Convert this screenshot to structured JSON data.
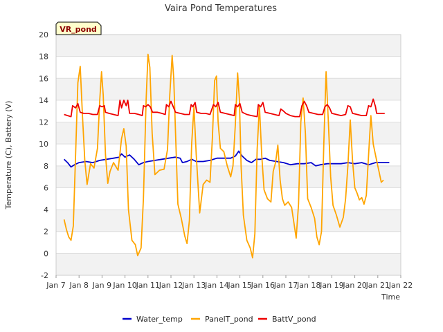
{
  "chart_data": {
    "type": "line",
    "title": "Vaira Pond Temperatures",
    "xlabel": "Time",
    "ylabel": "Temperature (C), Battery (V)",
    "badge": "VR_pond",
    "xlim": [
      7,
      22
    ],
    "ylim": [
      -2,
      20
    ],
    "x_ticks": [
      {
        "x": 7,
        "label": "Jan 7"
      },
      {
        "x": 8,
        "label": "Jan 8"
      },
      {
        "x": 9,
        "label": "Jan 9"
      },
      {
        "x": 10,
        "label": "Jan 10"
      },
      {
        "x": 11,
        "label": "Jan 11"
      },
      {
        "x": 12,
        "label": "Jan 12"
      },
      {
        "x": 13,
        "label": "Jan 13"
      },
      {
        "x": 14,
        "label": "Jan 14"
      },
      {
        "x": 15,
        "label": "Jan 15"
      },
      {
        "x": 16,
        "label": "Jan 16"
      },
      {
        "x": 17,
        "label": "Jan 17"
      },
      {
        "x": 18,
        "label": "Jan 18"
      },
      {
        "x": 19,
        "label": "Jan 19"
      },
      {
        "x": 20,
        "label": "Jan 20"
      },
      {
        "x": 21,
        "label": "Jan 21"
      },
      {
        "x": 22,
        "label": "Jan 22"
      }
    ],
    "y_ticks": [
      -2,
      0,
      2,
      4,
      6,
      8,
      10,
      12,
      14,
      16,
      18,
      20
    ],
    "grid": true,
    "legend_position": "bottom",
    "series": [
      {
        "name": "Water_temp",
        "color": "#0000cc",
        "points": [
          [
            7.35,
            8.6
          ],
          [
            7.5,
            8.3
          ],
          [
            7.65,
            7.9
          ],
          [
            7.8,
            8.1
          ],
          [
            8.0,
            8.3
          ],
          [
            8.3,
            8.4
          ],
          [
            8.6,
            8.3
          ],
          [
            8.9,
            8.5
          ],
          [
            9.2,
            8.6
          ],
          [
            9.5,
            8.7
          ],
          [
            9.75,
            8.8
          ],
          [
            9.85,
            9.1
          ],
          [
            10.0,
            8.8
          ],
          [
            10.2,
            9.0
          ],
          [
            10.4,
            8.6
          ],
          [
            10.6,
            8.1
          ],
          [
            10.8,
            8.3
          ],
          [
            11.0,
            8.4
          ],
          [
            11.3,
            8.5
          ],
          [
            11.6,
            8.6
          ],
          [
            11.9,
            8.7
          ],
          [
            12.2,
            8.8
          ],
          [
            12.4,
            8.7
          ],
          [
            12.5,
            8.3
          ],
          [
            12.7,
            8.4
          ],
          [
            12.9,
            8.6
          ],
          [
            13.1,
            8.4
          ],
          [
            13.4,
            8.4
          ],
          [
            13.7,
            8.5
          ],
          [
            14.0,
            8.7
          ],
          [
            14.3,
            8.7
          ],
          [
            14.6,
            8.7
          ],
          [
            14.8,
            8.9
          ],
          [
            14.95,
            9.35
          ],
          [
            15.1,
            8.9
          ],
          [
            15.3,
            8.5
          ],
          [
            15.5,
            8.3
          ],
          [
            15.7,
            8.6
          ],
          [
            15.9,
            8.6
          ],
          [
            16.1,
            8.7
          ],
          [
            16.3,
            8.5
          ],
          [
            16.6,
            8.4
          ],
          [
            16.9,
            8.3
          ],
          [
            17.2,
            8.1
          ],
          [
            17.5,
            8.2
          ],
          [
            17.8,
            8.2
          ],
          [
            18.1,
            8.3
          ],
          [
            18.3,
            8.0
          ],
          [
            18.5,
            8.1
          ],
          [
            18.8,
            8.2
          ],
          [
            19.1,
            8.2
          ],
          [
            19.4,
            8.2
          ],
          [
            19.7,
            8.3
          ],
          [
            20.0,
            8.2
          ],
          [
            20.3,
            8.3
          ],
          [
            20.6,
            8.1
          ],
          [
            20.9,
            8.3
          ],
          [
            21.2,
            8.3
          ],
          [
            21.5,
            8.3
          ]
        ]
      },
      {
        "name": "PanelT_pond",
        "color": "#ffa500",
        "points": [
          [
            7.35,
            3.1
          ],
          [
            7.45,
            2.2
          ],
          [
            7.55,
            1.5
          ],
          [
            7.65,
            1.2
          ],
          [
            7.75,
            2.5
          ],
          [
            7.85,
            9.0
          ],
          [
            7.95,
            15.6
          ],
          [
            8.05,
            17.1
          ],
          [
            8.15,
            12.5
          ],
          [
            8.25,
            8.5
          ],
          [
            8.35,
            6.3
          ],
          [
            8.5,
            8.2
          ],
          [
            8.65,
            7.8
          ],
          [
            8.8,
            9.6
          ],
          [
            8.9,
            14.0
          ],
          [
            8.98,
            16.6
          ],
          [
            9.05,
            14.5
          ],
          [
            9.15,
            9.0
          ],
          [
            9.25,
            6.4
          ],
          [
            9.35,
            7.5
          ],
          [
            9.5,
            8.3
          ],
          [
            9.7,
            7.6
          ],
          [
            9.85,
            10.5
          ],
          [
            9.95,
            11.4
          ],
          [
            10.05,
            9.8
          ],
          [
            10.15,
            4.0
          ],
          [
            10.3,
            1.2
          ],
          [
            10.45,
            0.8
          ],
          [
            10.55,
            -0.2
          ],
          [
            10.7,
            0.5
          ],
          [
            10.8,
            5.0
          ],
          [
            10.92,
            14.0
          ],
          [
            11.0,
            18.2
          ],
          [
            11.08,
            17.0
          ],
          [
            11.18,
            11.0
          ],
          [
            11.3,
            7.2
          ],
          [
            11.5,
            7.6
          ],
          [
            11.7,
            7.7
          ],
          [
            11.85,
            9.5
          ],
          [
            11.95,
            14.5
          ],
          [
            12.05,
            18.1
          ],
          [
            12.12,
            16.0
          ],
          [
            12.2,
            11.0
          ],
          [
            12.3,
            4.5
          ],
          [
            12.45,
            3.2
          ],
          [
            12.6,
            1.6
          ],
          [
            12.7,
            0.9
          ],
          [
            12.8,
            3.0
          ],
          [
            12.9,
            10.0
          ],
          [
            13.0,
            13.4
          ],
          [
            13.1,
            9.0
          ],
          [
            13.25,
            3.7
          ],
          [
            13.4,
            6.3
          ],
          [
            13.55,
            6.7
          ],
          [
            13.7,
            6.5
          ],
          [
            13.8,
            10.5
          ],
          [
            13.9,
            15.8
          ],
          [
            13.98,
            16.2
          ],
          [
            14.05,
            12.0
          ],
          [
            14.15,
            9.6
          ],
          [
            14.3,
            9.3
          ],
          [
            14.45,
            8.0
          ],
          [
            14.6,
            7.0
          ],
          [
            14.7,
            8.0
          ],
          [
            14.8,
            11.8
          ],
          [
            14.9,
            16.5
          ],
          [
            14.98,
            14.0
          ],
          [
            15.05,
            8.0
          ],
          [
            15.15,
            3.5
          ],
          [
            15.3,
            1.2
          ],
          [
            15.45,
            0.5
          ],
          [
            15.55,
            -0.4
          ],
          [
            15.65,
            1.8
          ],
          [
            15.75,
            9.5
          ],
          [
            15.85,
            13.5
          ],
          [
            15.95,
            9.0
          ],
          [
            16.05,
            5.8
          ],
          [
            16.2,
            5.0
          ],
          [
            16.35,
            4.7
          ],
          [
            16.45,
            7.5
          ],
          [
            16.55,
            8.3
          ],
          [
            16.65,
            9.9
          ],
          [
            16.75,
            6.7
          ],
          [
            16.85,
            5.0
          ],
          [
            16.95,
            4.4
          ],
          [
            17.1,
            4.7
          ],
          [
            17.25,
            4.2
          ],
          [
            17.35,
            2.8
          ],
          [
            17.45,
            1.4
          ],
          [
            17.55,
            4.5
          ],
          [
            17.65,
            12.0
          ],
          [
            17.75,
            14.2
          ],
          [
            17.85,
            11.0
          ],
          [
            17.95,
            5.0
          ],
          [
            18.1,
            4.2
          ],
          [
            18.25,
            3.2
          ],
          [
            18.35,
            1.5
          ],
          [
            18.45,
            0.8
          ],
          [
            18.55,
            2.0
          ],
          [
            18.65,
            10.0
          ],
          [
            18.75,
            16.6
          ],
          [
            18.85,
            12.0
          ],
          [
            18.95,
            7.0
          ],
          [
            19.05,
            4.4
          ],
          [
            19.2,
            3.5
          ],
          [
            19.35,
            2.4
          ],
          [
            19.5,
            3.3
          ],
          [
            19.6,
            5.0
          ],
          [
            19.7,
            8.0
          ],
          [
            19.8,
            12.2
          ],
          [
            19.9,
            8.5
          ],
          [
            20.0,
            6.0
          ],
          [
            20.1,
            5.5
          ],
          [
            20.2,
            4.9
          ],
          [
            20.3,
            5.1
          ],
          [
            20.4,
            4.5
          ],
          [
            20.5,
            5.3
          ],
          [
            20.6,
            9.0
          ],
          [
            20.7,
            12.6
          ],
          [
            20.8,
            10.0
          ],
          [
            20.95,
            8.5
          ],
          [
            21.05,
            7.5
          ],
          [
            21.15,
            6.5
          ],
          [
            21.25,
            6.7
          ]
        ]
      },
      {
        "name": "BattV_pond",
        "color": "#ee0000",
        "points": [
          [
            7.35,
            12.7
          ],
          [
            7.5,
            12.6
          ],
          [
            7.65,
            12.5
          ],
          [
            7.72,
            13.5
          ],
          [
            7.85,
            13.3
          ],
          [
            7.95,
            13.7
          ],
          [
            8.05,
            12.9
          ],
          [
            8.2,
            12.8
          ],
          [
            8.4,
            12.8
          ],
          [
            8.6,
            12.7
          ],
          [
            8.8,
            12.7
          ],
          [
            8.9,
            13.5
          ],
          [
            9.0,
            13.4
          ],
          [
            9.1,
            13.5
          ],
          [
            9.15,
            12.9
          ],
          [
            9.3,
            12.8
          ],
          [
            9.5,
            12.7
          ],
          [
            9.7,
            12.6
          ],
          [
            9.78,
            14.0
          ],
          [
            9.85,
            13.3
          ],
          [
            9.95,
            14.0
          ],
          [
            10.05,
            13.5
          ],
          [
            10.12,
            14.0
          ],
          [
            10.2,
            12.8
          ],
          [
            10.4,
            12.8
          ],
          [
            10.6,
            12.7
          ],
          [
            10.75,
            12.6
          ],
          [
            10.8,
            13.5
          ],
          [
            10.9,
            13.4
          ],
          [
            11.0,
            13.6
          ],
          [
            11.1,
            13.4
          ],
          [
            11.2,
            12.9
          ],
          [
            11.4,
            12.9
          ],
          [
            11.6,
            12.8
          ],
          [
            11.75,
            12.7
          ],
          [
            11.8,
            13.6
          ],
          [
            11.9,
            13.4
          ],
          [
            12.0,
            13.9
          ],
          [
            12.1,
            13.4
          ],
          [
            12.2,
            12.9
          ],
          [
            12.4,
            12.8
          ],
          [
            12.6,
            12.7
          ],
          [
            12.8,
            12.7
          ],
          [
            12.88,
            13.6
          ],
          [
            12.95,
            13.4
          ],
          [
            13.05,
            13.8
          ],
          [
            13.12,
            12.9
          ],
          [
            13.3,
            12.8
          ],
          [
            13.5,
            12.8
          ],
          [
            13.7,
            12.7
          ],
          [
            13.85,
            13.6
          ],
          [
            13.95,
            13.4
          ],
          [
            14.05,
            13.8
          ],
          [
            14.15,
            12.9
          ],
          [
            14.35,
            12.8
          ],
          [
            14.55,
            12.7
          ],
          [
            14.75,
            12.6
          ],
          [
            14.8,
            13.6
          ],
          [
            14.9,
            13.4
          ],
          [
            15.0,
            13.7
          ],
          [
            15.1,
            12.9
          ],
          [
            15.3,
            12.7
          ],
          [
            15.5,
            12.6
          ],
          [
            15.75,
            12.5
          ],
          [
            15.8,
            13.6
          ],
          [
            15.9,
            13.4
          ],
          [
            16.0,
            13.8
          ],
          [
            16.1,
            12.9
          ],
          [
            16.3,
            12.8
          ],
          [
            16.5,
            12.7
          ],
          [
            16.7,
            12.6
          ],
          [
            16.78,
            13.2
          ],
          [
            16.9,
            13.0
          ],
          [
            17.0,
            12.8
          ],
          [
            17.2,
            12.6
          ],
          [
            17.4,
            12.5
          ],
          [
            17.6,
            12.5
          ],
          [
            17.7,
            13.5
          ],
          [
            17.8,
            13.9
          ],
          [
            17.9,
            13.5
          ],
          [
            18.0,
            12.9
          ],
          [
            18.2,
            12.8
          ],
          [
            18.4,
            12.7
          ],
          [
            18.6,
            12.7
          ],
          [
            18.7,
            13.4
          ],
          [
            18.8,
            13.6
          ],
          [
            18.9,
            13.3
          ],
          [
            19.0,
            12.8
          ],
          [
            19.2,
            12.7
          ],
          [
            19.4,
            12.6
          ],
          [
            19.6,
            12.7
          ],
          [
            19.7,
            13.5
          ],
          [
            19.8,
            13.4
          ],
          [
            19.9,
            12.8
          ],
          [
            20.1,
            12.7
          ],
          [
            20.3,
            12.6
          ],
          [
            20.5,
            12.6
          ],
          [
            20.6,
            13.5
          ],
          [
            20.7,
            13.4
          ],
          [
            20.8,
            14.1
          ],
          [
            20.9,
            13.4
          ],
          [
            20.95,
            12.8
          ],
          [
            21.1,
            12.8
          ],
          [
            21.3,
            12.8
          ]
        ]
      }
    ]
  }
}
